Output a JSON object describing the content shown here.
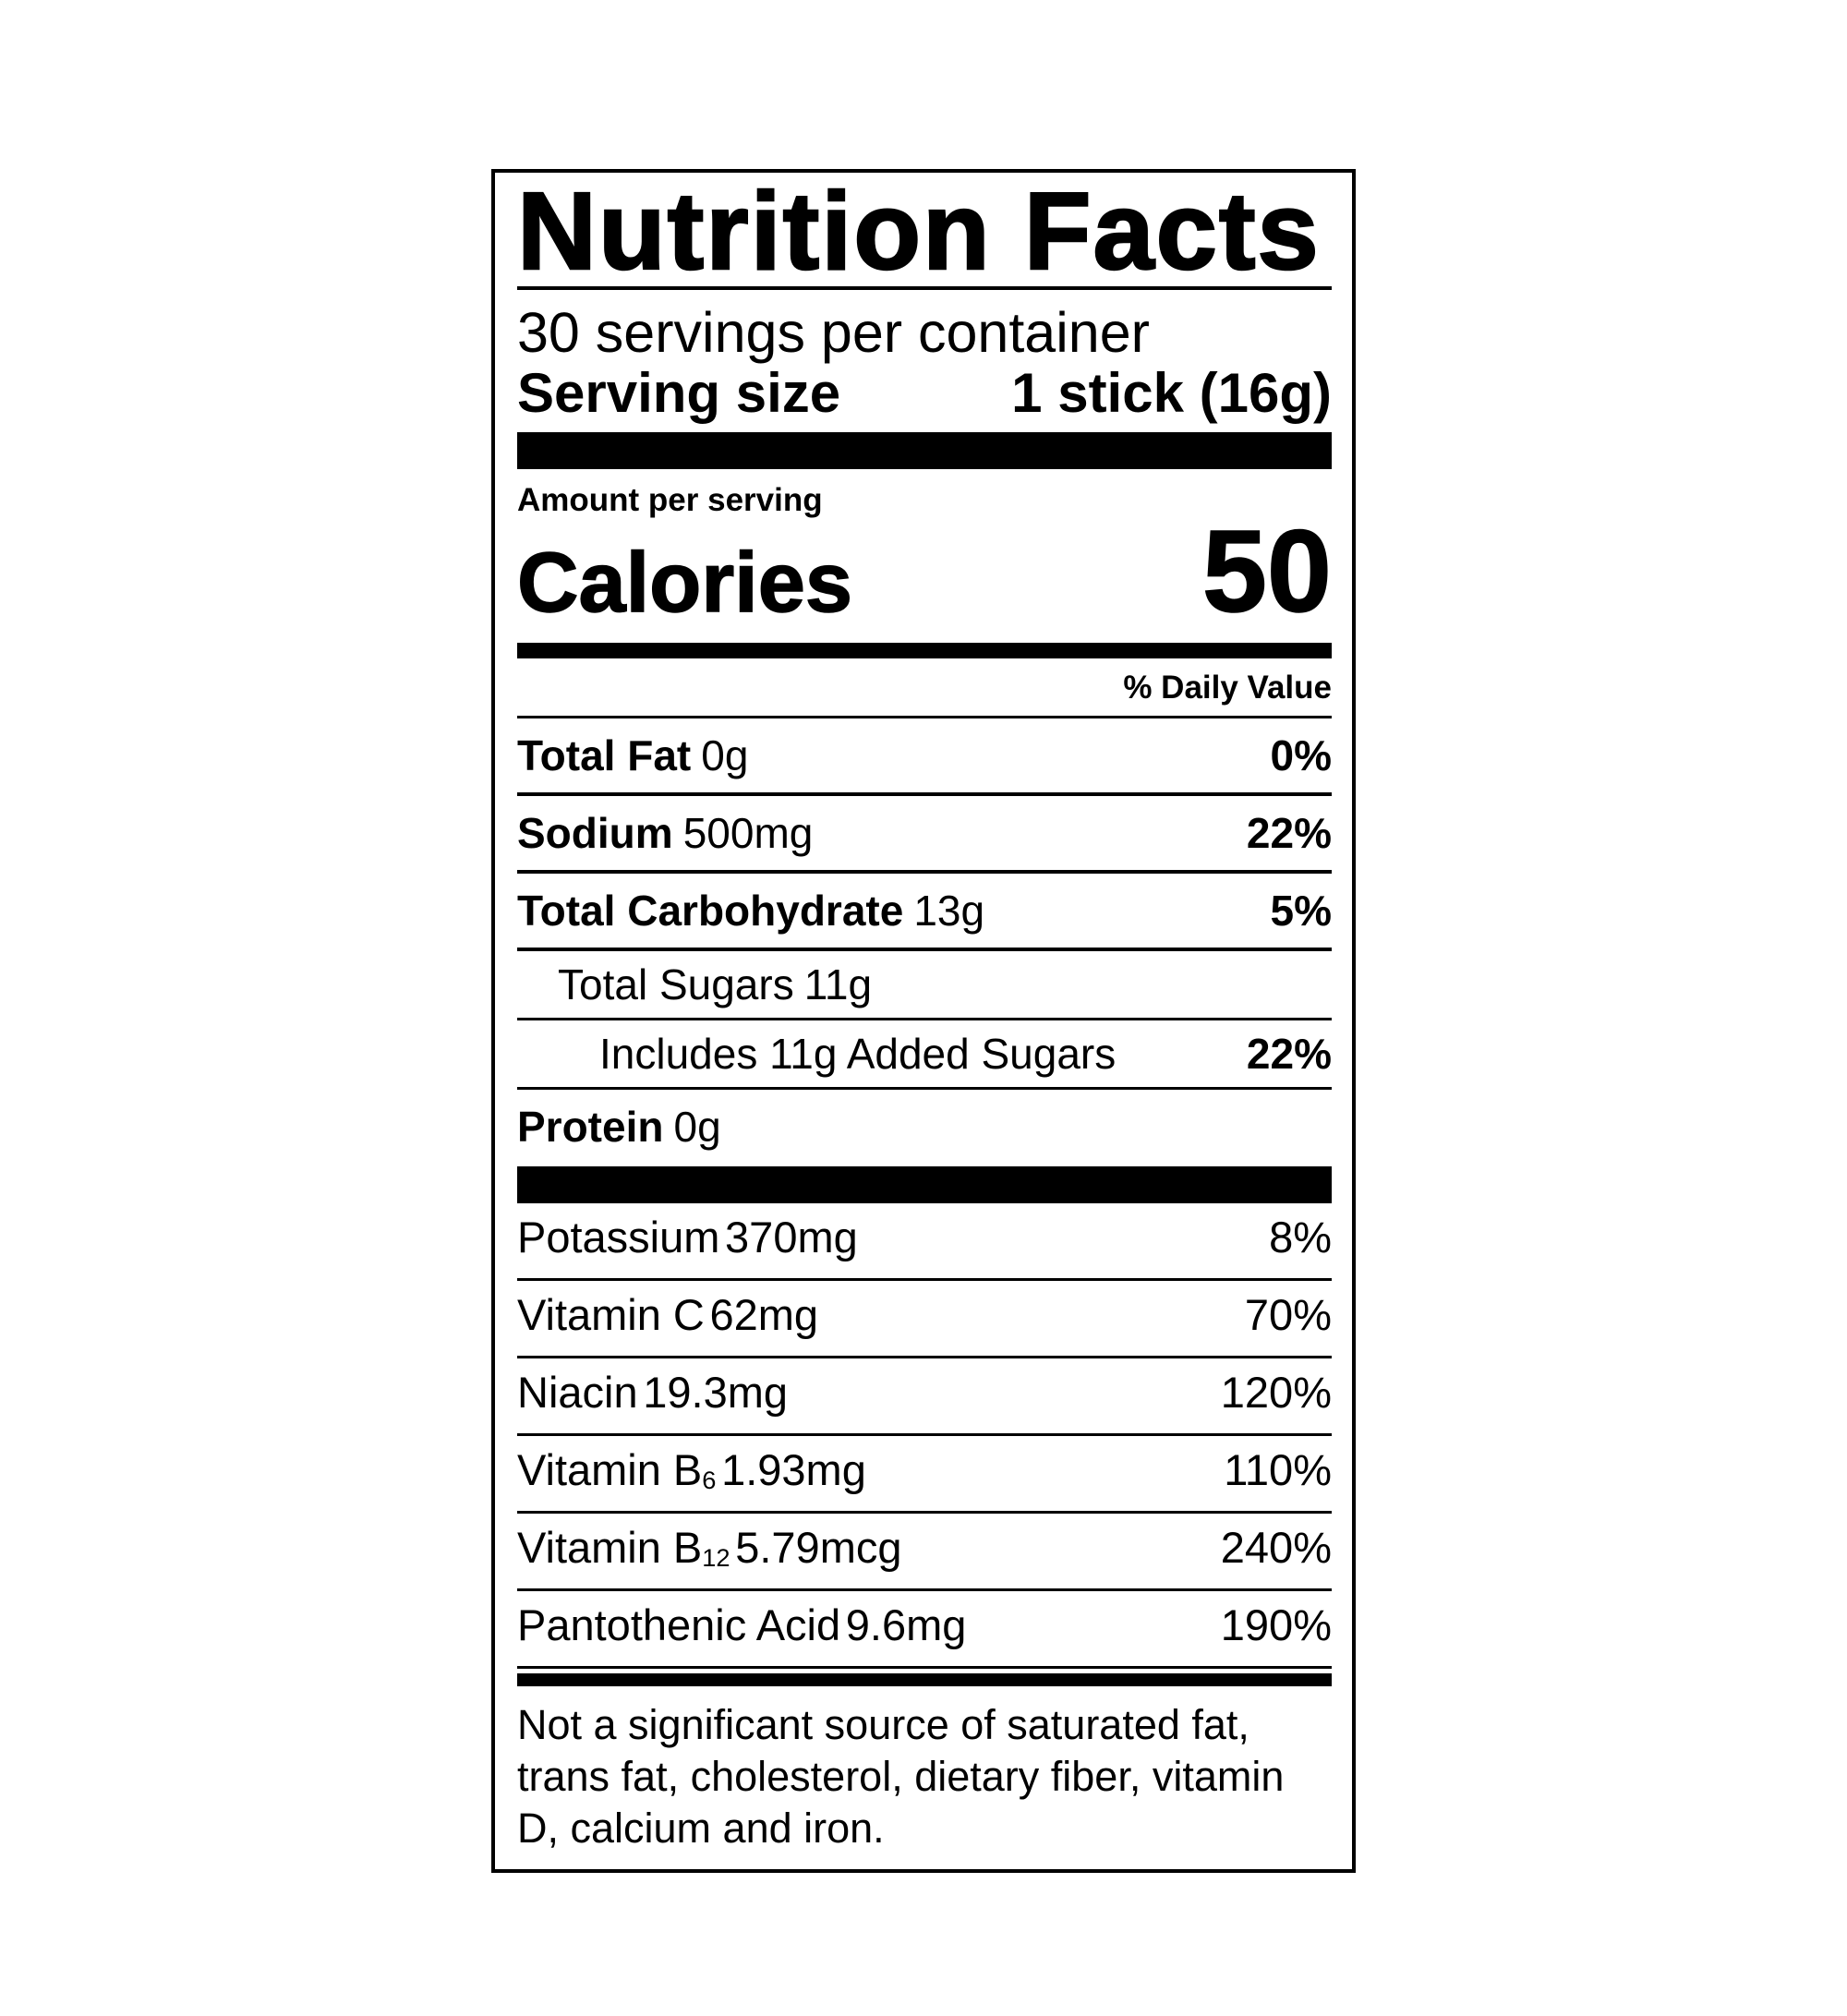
{
  "label": {
    "title": "Nutrition Facts",
    "servings_per_container": "30 servings per container",
    "serving_size": {
      "label": "Serving size",
      "value": "1 stick (16g)"
    },
    "amount_per_serving": "Amount per serving",
    "calories": {
      "label": "Calories",
      "value": "50"
    },
    "daily_value_header": "% Daily Value",
    "nutrients": [
      {
        "name": "Total Fat",
        "amount": "0g",
        "dv": "0%"
      },
      {
        "name": "Sodium",
        "amount": "500mg",
        "dv": "22%"
      },
      {
        "name": "Total Carbohydrate",
        "amount": "13g",
        "dv": "5%"
      },
      {
        "name": "Total Sugars",
        "amount": "11g",
        "dv": ""
      },
      {
        "name": "Includes 11g Added Sugars",
        "amount": "",
        "dv": "22%"
      },
      {
        "name": "Protein",
        "amount": "0g",
        "dv": ""
      }
    ],
    "vitamins": [
      {
        "name": "Potassium",
        "amount": "370mg",
        "dv": "8%"
      },
      {
        "name": "Vitamin C",
        "amount": "62mg",
        "dv": "70%"
      },
      {
        "name": "Niacin",
        "amount": "19.3mg",
        "dv": "120%"
      },
      {
        "name": "Vitamin B",
        "sub": "6",
        "amount": "1.93mg",
        "dv": "110%"
      },
      {
        "name": "Vitamin B",
        "sub": "12",
        "amount": "5.79mcg",
        "dv": "240%"
      },
      {
        "name": "Pantothenic Acid",
        "amount": "9.6mg",
        "dv": "190%"
      }
    ],
    "footnote": "Not a significant source of saturated fat, trans fat, cholesterol, dietary fiber, vitamin D, calcium and iron."
  },
  "colors": {
    "ink": "#000000",
    "background": "#ffffff"
  }
}
